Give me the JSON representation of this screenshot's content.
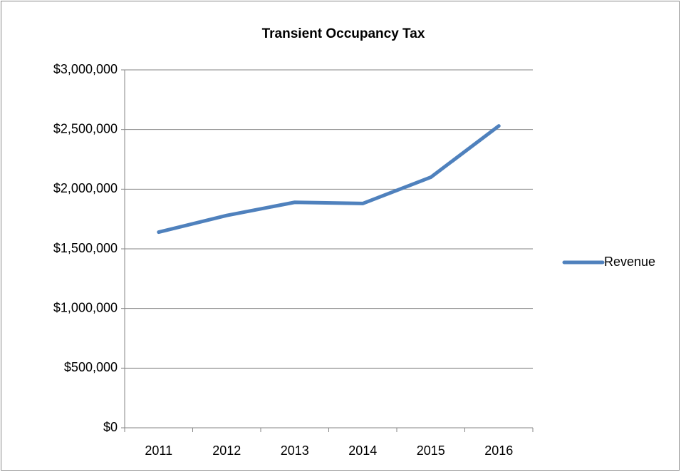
{
  "chart_data": {
    "type": "line",
    "title": "Transient Occupancy Tax",
    "categories": [
      "2011",
      "2012",
      "2013",
      "2014",
      "2015",
      "2016"
    ],
    "series": [
      {
        "name": "Revenue",
        "color": "#4f81bd",
        "values": [
          1640000,
          1780000,
          1890000,
          1880000,
          2100000,
          2530000
        ]
      }
    ],
    "ylim": [
      0,
      3000000
    ],
    "yticks": [
      {
        "value": 0,
        "label": "$0"
      },
      {
        "value": 500000,
        "label": "$500,000"
      },
      {
        "value": 1000000,
        "label": "$1,000,000"
      },
      {
        "value": 1500000,
        "label": "$1,500,000"
      },
      {
        "value": 2000000,
        "label": "$2,000,000"
      },
      {
        "value": 2500000,
        "label": "$2,500,000"
      },
      {
        "value": 3000000,
        "label": "$3,000,000"
      }
    ],
    "grid": true,
    "legend": "right"
  }
}
